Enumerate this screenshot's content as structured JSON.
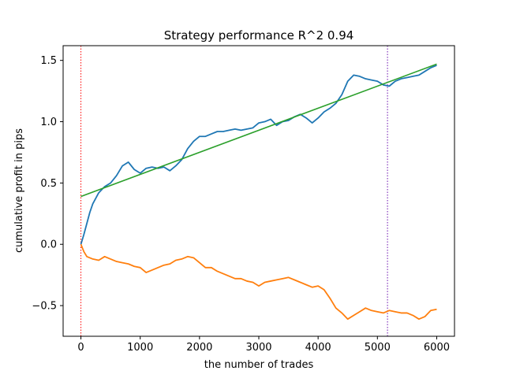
{
  "chart_data": {
    "type": "line",
    "title": "Strategy performance R^2 0.94",
    "xlabel": "the number of trades",
    "ylabel": "cumulative profit in pips",
    "xlim": [
      -300,
      6300
    ],
    "ylim": [
      -0.75,
      1.62
    ],
    "x_ticks": [
      0,
      1000,
      2000,
      3000,
      4000,
      5000,
      6000
    ],
    "x_tick_labels": [
      "0",
      "1000",
      "2000",
      "3000",
      "4000",
      "5000",
      "6000"
    ],
    "y_ticks": [
      -0.5,
      0.0,
      0.5,
      1.0,
      1.5
    ],
    "y_tick_labels": [
      "−0.5",
      "0.0",
      "0.5",
      "1.0",
      "1.5"
    ],
    "grid": false,
    "legend": "none",
    "vlines": [
      {
        "x": 0,
        "color": "#ff0000",
        "style": "dotted"
      },
      {
        "x": 5170,
        "color": "#6a0dad",
        "style": "dotted"
      }
    ],
    "series": [
      {
        "color": "#1f77b4",
        "x": [
          0,
          50,
          100,
          150,
          200,
          300,
          400,
          500,
          600,
          700,
          800,
          900,
          1000,
          1100,
          1200,
          1300,
          1400,
          1500,
          1600,
          1700,
          1800,
          1900,
          2000,
          2100,
          2200,
          2300,
          2400,
          2500,
          2600,
          2700,
          2800,
          2900,
          3000,
          3100,
          3200,
          3300,
          3400,
          3500,
          3600,
          3700,
          3800,
          3900,
          4000,
          4100,
          4200,
          4300,
          4400,
          4500,
          4600,
          4700,
          4800,
          4900,
          5000,
          5100,
          5200,
          5300,
          5400,
          5500,
          5600,
          5700,
          5800,
          5900,
          6000
        ],
        "y": [
          0.0,
          0.08,
          0.17,
          0.26,
          0.33,
          0.42,
          0.47,
          0.5,
          0.56,
          0.64,
          0.67,
          0.61,
          0.58,
          0.62,
          0.63,
          0.62,
          0.63,
          0.6,
          0.64,
          0.69,
          0.78,
          0.84,
          0.88,
          0.88,
          0.9,
          0.92,
          0.92,
          0.93,
          0.94,
          0.93,
          0.94,
          0.95,
          0.99,
          1.0,
          1.02,
          0.97,
          1.0,
          1.01,
          1.04,
          1.06,
          1.03,
          0.99,
          1.03,
          1.08,
          1.11,
          1.15,
          1.22,
          1.33,
          1.38,
          1.37,
          1.35,
          1.34,
          1.33,
          1.3,
          1.29,
          1.33,
          1.35,
          1.36,
          1.37,
          1.38,
          1.41,
          1.44,
          1.46
        ]
      },
      {
        "color": "#ff7f0e",
        "x": [
          0,
          50,
          100,
          200,
          300,
          400,
          500,
          600,
          700,
          800,
          900,
          1000,
          1100,
          1200,
          1300,
          1400,
          1500,
          1600,
          1700,
          1800,
          1900,
          2000,
          2100,
          2200,
          2300,
          2400,
          2500,
          2600,
          2700,
          2800,
          2900,
          3000,
          3100,
          3200,
          3300,
          3400,
          3500,
          3600,
          3700,
          3800,
          3900,
          4000,
          4100,
          4200,
          4300,
          4400,
          4500,
          4600,
          4700,
          4800,
          4900,
          5000,
          5100,
          5200,
          5300,
          5400,
          5500,
          5600,
          5700,
          5800,
          5900,
          6000
        ],
        "y": [
          0.0,
          -0.06,
          -0.1,
          -0.12,
          -0.13,
          -0.1,
          -0.12,
          -0.14,
          -0.15,
          -0.16,
          -0.18,
          -0.19,
          -0.23,
          -0.21,
          -0.19,
          -0.17,
          -0.16,
          -0.13,
          -0.12,
          -0.1,
          -0.11,
          -0.15,
          -0.19,
          -0.19,
          -0.22,
          -0.24,
          -0.26,
          -0.28,
          -0.28,
          -0.3,
          -0.31,
          -0.34,
          -0.31,
          -0.3,
          -0.29,
          -0.28,
          -0.27,
          -0.29,
          -0.31,
          -0.33,
          -0.35,
          -0.34,
          -0.37,
          -0.44,
          -0.52,
          -0.56,
          -0.61,
          -0.58,
          -0.55,
          -0.52,
          -0.54,
          -0.55,
          -0.56,
          -0.54,
          -0.55,
          -0.56,
          -0.56,
          -0.58,
          -0.61,
          -0.59,
          -0.54,
          -0.53
        ]
      },
      {
        "color": "#2ca02c",
        "x": [
          0,
          6000
        ],
        "y": [
          0.39,
          1.47
        ]
      }
    ]
  }
}
